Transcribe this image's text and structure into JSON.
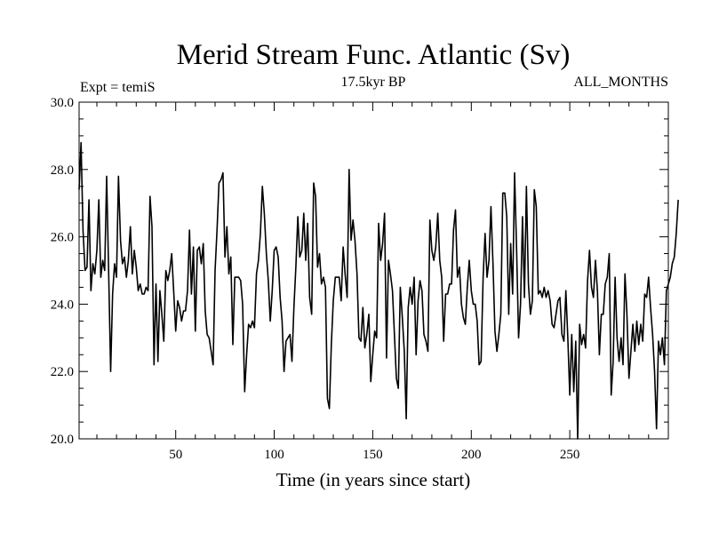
{
  "chart_data": {
    "type": "line",
    "title": "Merid Stream Func. Atlantic (Sv)",
    "subtitle_left": "Expt = temiS",
    "subtitle_center": "17.5kyr BP",
    "subtitle_right": "ALL_MONTHS",
    "xlabel": "Time (in years since start)",
    "ylabel": "",
    "xlim": [
      1,
      300
    ],
    "ylim": [
      20,
      30
    ],
    "x_ticks": [
      50,
      100,
      150,
      200,
      250
    ],
    "x_tick_labels": [
      "50",
      "100",
      "150",
      "200",
      "250"
    ],
    "y_ticks": [
      20,
      22,
      24,
      26,
      28,
      30
    ],
    "y_tick_labels": [
      "20.0",
      "22.0",
      "24.0",
      "26.0",
      "28.0",
      "30.0"
    ],
    "x_minor_step": 10,
    "y_minor_step": 0.5,
    "series": [
      {
        "name": "Merid Stream Func. Atlantic",
        "color": "#000000",
        "x_start": 1,
        "x_step": 1,
        "values": [
          27.4,
          28.8,
          26.2,
          25.0,
          25.1,
          27.1,
          24.4,
          25.2,
          24.9,
          25.6,
          27.1,
          24.8,
          25.3,
          25.0,
          27.8,
          24.9,
          22.0,
          24.3,
          25.2,
          24.8,
          27.8,
          25.9,
          25.2,
          25.4,
          24.8,
          25.3,
          26.3,
          24.9,
          25.6,
          25.1,
          24.4,
          24.6,
          24.3,
          24.3,
          24.5,
          24.4,
          27.2,
          26.3,
          22.2,
          24.6,
          22.3,
          24.4,
          23.7,
          22.9,
          25.0,
          24.7,
          25.0,
          25.5,
          24.4,
          23.2,
          24.1,
          23.9,
          23.5,
          23.8,
          23.8,
          24.4,
          26.2,
          24.3,
          25.7,
          23.2,
          25.6,
          25.7,
          25.2,
          25.8,
          23.8,
          23.1,
          23.0,
          22.6,
          22.2,
          25.0,
          26.2,
          27.6,
          27.7,
          27.9,
          25.4,
          26.3,
          24.9,
          25.4,
          22.8,
          24.8,
          24.8,
          24.8,
          24.7,
          24.0,
          21.4,
          22.5,
          23.4,
          23.3,
          23.5,
          23.3,
          24.9,
          25.3,
          26.1,
          27.5,
          26.7,
          25.5,
          24.7,
          23.5,
          24.4,
          25.6,
          25.7,
          25.4,
          24.2,
          23.5,
          22.0,
          22.9,
          23.0,
          23.1,
          22.3,
          23.9,
          25.1,
          26.6,
          25.4,
          25.6,
          26.7,
          25.3,
          26.4,
          24.2,
          23.7,
          27.6,
          27.2,
          25.1,
          25.5,
          24.6,
          24.8,
          24.5,
          21.2,
          20.9,
          22.8,
          24.1,
          24.8,
          24.8,
          24.8,
          24.1,
          25.7,
          24.9,
          24.2,
          28.0,
          25.9,
          26.5,
          25.9,
          24.9,
          23.0,
          22.9,
          23.9,
          22.7,
          23.1,
          23.7,
          21.7,
          22.5,
          23.2,
          23.0,
          26.4,
          25.3,
          25.8,
          26.7,
          22.4,
          25.3,
          24.9,
          24.4,
          23.1,
          21.8,
          21.5,
          24.5,
          23.6,
          22.6,
          20.6,
          23.9,
          24.5,
          24.0,
          24.8,
          22.5,
          24.1,
          24.7,
          24.4,
          23.1,
          22.9,
          22.6,
          26.5,
          25.6,
          25.3,
          25.7,
          26.7,
          25.3,
          24.8,
          22.9,
          24.3,
          24.3,
          24.6,
          24.6,
          26.2,
          26.8,
          24.8,
          25.1,
          24.0,
          23.6,
          23.4,
          24.5,
          25.3,
          24.4,
          24.0,
          24.0,
          23.5,
          22.2,
          22.3,
          24.8,
          26.1,
          24.8,
          25.3,
          26.9,
          25.2,
          23.2,
          22.6,
          23.1,
          23.7,
          27.3,
          27.3,
          26.6,
          23.7,
          25.8,
          24.3,
          27.9,
          25.6,
          23.0,
          24.0,
          26.6,
          24.2,
          27.5,
          24.6,
          23.7,
          24.1,
          27.4,
          26.9,
          24.3,
          24.4,
          24.2,
          24.5,
          24.2,
          24.4,
          24.1,
          23.4,
          23.3,
          23.7,
          24.1,
          24.2,
          23.1,
          22.9,
          24.4,
          23.0,
          21.3,
          23.1,
          21.4,
          22.9,
          20.0,
          23.4,
          22.8,
          23.1,
          22.7,
          24.7,
          25.6,
          24.5,
          24.2,
          25.3,
          24.4,
          22.5,
          23.7,
          23.7,
          24.6,
          24.8,
          25.5,
          21.3,
          22.3,
          24.8,
          23.0,
          22.3,
          23.0,
          22.2,
          24.9,
          23.7,
          21.8,
          22.6,
          23.4,
          22.6,
          23.5,
          22.8,
          23.4,
          22.9,
          24.3,
          24.2,
          24.8,
          23.9,
          23.1,
          22.0,
          20.3,
          22.9,
          22.5,
          23.0,
          22.2,
          24.4,
          24.6,
          24.8,
          25.2,
          25.4,
          26.1,
          27.1
        ]
      }
    ]
  }
}
